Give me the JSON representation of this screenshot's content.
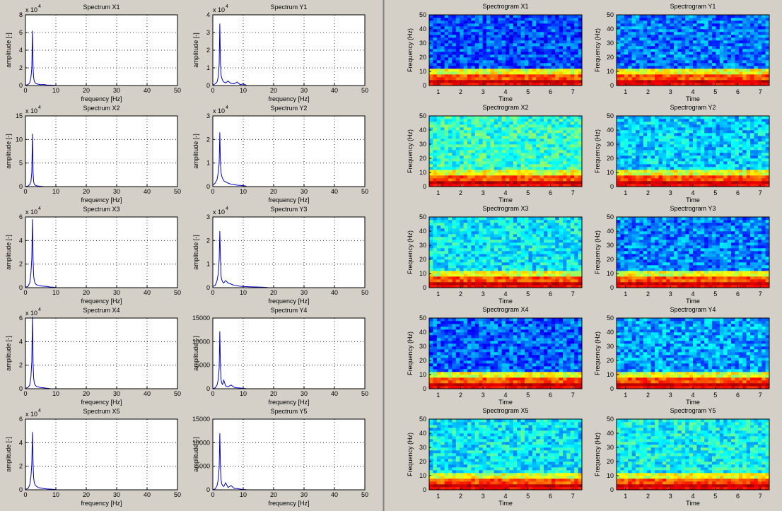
{
  "window": {
    "background": "#d4d0c8",
    "divider_color": "#808080"
  },
  "colors": {
    "spectrum_line": "#0000cc",
    "grid": "#000000",
    "axes_bg": "#ffffff"
  },
  "chart_data": [
    {
      "id": "spec-x1",
      "type": "line",
      "title": "Spectrum X1",
      "xlabel": "frequency [Hz]",
      "ylabel": "amplitude [-]",
      "exponent": "x 10",
      "exponent_power": "4",
      "xlim": [
        0,
        50
      ],
      "ylim": [
        0,
        8
      ],
      "xticks": [
        "0",
        "10",
        "20",
        "30",
        "40",
        "50"
      ],
      "yticks": [
        "0",
        "2",
        "4",
        "6",
        "8"
      ],
      "grid": true,
      "series": [
        {
          "x": [
            0,
            0.8,
            1.4,
            1.8,
            2.1,
            2.3,
            2.5,
            2.7,
            2.9,
            3.2,
            3.6,
            4.2,
            5,
            6,
            7,
            8,
            9,
            10
          ],
          "y": [
            0.05,
            0.1,
            0.3,
            0.9,
            2.0,
            6.2,
            2.0,
            0.9,
            0.5,
            0.3,
            0.2,
            0.15,
            0.1,
            0.12,
            0.06,
            0.05,
            0.04,
            0.02
          ]
        }
      ]
    },
    {
      "id": "spec-y1",
      "type": "line",
      "title": "Spectrum Y1",
      "xlabel": "frequency [Hz]",
      "ylabel": "amplitude [-]",
      "exponent": "x 10",
      "exponent_power": "4",
      "xlim": [
        0,
        50
      ],
      "ylim": [
        0,
        4
      ],
      "xticks": [
        "0",
        "10",
        "20",
        "30",
        "40",
        "50"
      ],
      "yticks": [
        "0",
        "1",
        "2",
        "3",
        "4"
      ],
      "grid": true,
      "series": [
        {
          "x": [
            0,
            0.8,
            1.4,
            1.8,
            2.1,
            2.3,
            2.5,
            2.7,
            2.9,
            3.2,
            3.6,
            4.2,
            5,
            6,
            7,
            8,
            9,
            10,
            11
          ],
          "y": [
            0.02,
            0.1,
            0.2,
            0.5,
            1.2,
            3.5,
            1.3,
            0.6,
            0.45,
            0.3,
            0.2,
            0.15,
            0.25,
            0.12,
            0.1,
            0.2,
            0.05,
            0.1,
            0.02
          ]
        }
      ]
    },
    {
      "id": "spec-x2",
      "type": "line",
      "title": "Spectrum X2",
      "xlabel": "frequency [Hz]",
      "ylabel": "amplitude [-]",
      "exponent": "x 10",
      "exponent_power": "4",
      "xlim": [
        0,
        50
      ],
      "ylim": [
        0,
        15
      ],
      "xticks": [
        "0",
        "10",
        "20",
        "30",
        "40",
        "50"
      ],
      "yticks": [
        "0",
        "5",
        "10",
        "15"
      ],
      "grid": true,
      "series": [
        {
          "x": [
            0,
            0.8,
            1.4,
            1.8,
            2.1,
            2.3,
            2.5,
            2.7,
            2.9,
            3.2,
            3.6,
            4.2,
            5,
            6
          ],
          "y": [
            0.05,
            0.1,
            0.4,
            1.0,
            3.0,
            11.2,
            3.0,
            1.0,
            0.5,
            0.3,
            0.2,
            0.1,
            0.08,
            0.02
          ]
        }
      ]
    },
    {
      "id": "spec-y2",
      "type": "line",
      "title": "Spectrum Y2",
      "xlabel": "frequency [Hz]",
      "ylabel": "amplitude [-]",
      "exponent": "x 10",
      "exponent_power": "4",
      "xlim": [
        0,
        50
      ],
      "ylim": [
        0,
        3
      ],
      "xticks": [
        "0",
        "10",
        "20",
        "30",
        "40",
        "50"
      ],
      "yticks": [
        "0",
        "1",
        "2",
        "3"
      ],
      "grid": true,
      "series": [
        {
          "x": [
            0,
            0.8,
            1.4,
            1.8,
            2.1,
            2.3,
            2.5,
            2.7,
            2.9,
            3.2,
            3.6,
            4.2,
            5,
            6,
            7,
            8,
            9,
            10,
            11
          ],
          "y": [
            0.05,
            0.15,
            0.3,
            0.6,
            1.0,
            2.3,
            1.0,
            0.6,
            0.45,
            0.35,
            0.25,
            0.2,
            0.15,
            0.1,
            0.08,
            0.06,
            0.05,
            0.04,
            0.02
          ]
        }
      ]
    },
    {
      "id": "spec-x3",
      "type": "line",
      "title": "Spectrum X3",
      "xlabel": "frequency [Hz]",
      "ylabel": "amplitude [-]",
      "exponent": "x 10",
      "exponent_power": "4",
      "xlim": [
        0,
        50
      ],
      "ylim": [
        0,
        6
      ],
      "xticks": [
        "0",
        "10",
        "20",
        "30",
        "40",
        "50"
      ],
      "yticks": [
        "0",
        "2",
        "4",
        "6"
      ],
      "grid": true,
      "series": [
        {
          "x": [
            0,
            0.8,
            1.4,
            1.8,
            2.1,
            2.3,
            2.5,
            2.7,
            2.9,
            3.2,
            3.6,
            4.2,
            5,
            6,
            7,
            8,
            9,
            10
          ],
          "y": [
            0.05,
            0.1,
            0.4,
            1.2,
            2.5,
            5.8,
            2.4,
            1.0,
            0.6,
            0.35,
            0.25,
            0.2,
            0.15,
            0.12,
            0.1,
            0.06,
            0.04,
            0.02
          ]
        }
      ]
    },
    {
      "id": "spec-y3",
      "type": "line",
      "title": "Spectrum Y3",
      "xlabel": "frequency [Hz]",
      "ylabel": "amplitude [-]",
      "exponent": "x 10",
      "exponent_power": "4",
      "xlim": [
        0,
        50
      ],
      "ylim": [
        0,
        3
      ],
      "xticks": [
        "0",
        "10",
        "20",
        "30",
        "40",
        "50"
      ],
      "yticks": [
        "0",
        "1",
        "2",
        "3"
      ],
      "grid": true,
      "series": [
        {
          "x": [
            0,
            0.8,
            1.4,
            1.8,
            2.1,
            2.3,
            2.5,
            2.7,
            2.9,
            3.2,
            3.6,
            4.2,
            5,
            6,
            7,
            8,
            9,
            10,
            12,
            14,
            16,
            18
          ],
          "y": [
            0.05,
            0.1,
            0.3,
            0.6,
            1.2,
            2.4,
            1.2,
            0.5,
            0.35,
            0.25,
            0.2,
            0.3,
            0.2,
            0.15,
            0.1,
            0.08,
            0.06,
            0.05,
            0.04,
            0.03,
            0.02,
            0.01
          ]
        }
      ]
    },
    {
      "id": "spec-x4",
      "type": "line",
      "title": "Spectrum X4",
      "xlabel": "frequency [Hz]",
      "ylabel": "amplitude [-]",
      "exponent": "x 10",
      "exponent_power": "4",
      "xlim": [
        0,
        50
      ],
      "ylim": [
        0,
        6
      ],
      "xticks": [
        "0",
        "10",
        "20",
        "30",
        "40",
        "50"
      ],
      "yticks": [
        "0",
        "2",
        "4",
        "6"
      ],
      "grid": true,
      "series": [
        {
          "x": [
            0,
            0.8,
            1.4,
            1.8,
            2.1,
            2.3,
            2.5,
            2.7,
            2.9,
            3.2,
            3.6,
            4.2,
            5,
            6,
            7,
            8
          ],
          "y": [
            0.05,
            0.1,
            0.3,
            1.0,
            2.3,
            6.1,
            2.2,
            0.9,
            0.5,
            0.3,
            0.2,
            0.15,
            0.1,
            0.08,
            0.04,
            0.02
          ]
        }
      ]
    },
    {
      "id": "spec-y4",
      "type": "line",
      "title": "Spectrum Y4",
      "xlabel": "frequency [Hz]",
      "ylabel": "amplitude [-]",
      "exponent": "",
      "exponent_power": "",
      "xlim": [
        0,
        50
      ],
      "ylim": [
        0,
        15000
      ],
      "xticks": [
        "0",
        "10",
        "20",
        "30",
        "40",
        "50"
      ],
      "yticks": [
        "0",
        "5000",
        "10000",
        "15000"
      ],
      "grid": true,
      "series": [
        {
          "x": [
            0,
            0.8,
            1.4,
            1.8,
            2.1,
            2.3,
            2.5,
            2.7,
            2.9,
            3.2,
            3.6,
            4.2,
            5,
            6,
            7,
            8,
            9,
            10,
            11
          ],
          "y": [
            50,
            200,
            800,
            2000,
            4500,
            12200,
            4500,
            2000,
            1200,
            900,
            1800,
            600,
            400,
            800,
            300,
            200,
            150,
            80,
            30
          ]
        }
      ]
    },
    {
      "id": "spec-x5",
      "type": "line",
      "title": "Spectrum X5",
      "xlabel": "frequency [Hz]",
      "ylabel": "amplitude [-]",
      "exponent": "x 10",
      "exponent_power": "4",
      "xlim": [
        0,
        50
      ],
      "ylim": [
        0,
        6
      ],
      "xticks": [
        "0",
        "10",
        "20",
        "30",
        "40",
        "50"
      ],
      "yticks": [
        "0",
        "2",
        "4",
        "6"
      ],
      "grid": true,
      "series": [
        {
          "x": [
            0,
            0.8,
            1.4,
            1.8,
            2.1,
            2.3,
            2.5,
            2.7,
            2.9,
            3.2,
            3.6,
            4.2,
            5,
            6,
            7,
            8,
            9,
            10
          ],
          "y": [
            0.05,
            0.1,
            0.4,
            1.1,
            2.2,
            4.9,
            2.2,
            1.0,
            0.6,
            0.4,
            0.3,
            0.2,
            0.15,
            0.1,
            0.08,
            0.06,
            0.04,
            0.02
          ]
        }
      ]
    },
    {
      "id": "spec-y5",
      "type": "line",
      "title": "Spectrum Y5",
      "xlabel": "frequency [Hz]",
      "ylabel": "amplitude [-]",
      "exponent": "",
      "exponent_power": "",
      "xlim": [
        0,
        50
      ],
      "ylim": [
        0,
        15000
      ],
      "xticks": [
        "0",
        "10",
        "20",
        "30",
        "40",
        "50"
      ],
      "yticks": [
        "0",
        "5000",
        "10000",
        "15000"
      ],
      "grid": true,
      "series": [
        {
          "x": [
            0,
            0.8,
            1.4,
            1.8,
            2.1,
            2.3,
            2.5,
            2.7,
            2.9,
            3.2,
            3.6,
            4.2,
            5,
            6,
            7,
            8,
            9,
            10,
            11
          ],
          "y": [
            50,
            200,
            900,
            2200,
            4800,
            12000,
            4800,
            2200,
            1300,
            900,
            700,
            1500,
            500,
            900,
            300,
            250,
            150,
            80,
            30
          ]
        }
      ]
    },
    {
      "id": "sgram-x1",
      "type": "heatmap",
      "title": "Spectrogram X1",
      "xlabel": "Time",
      "ylabel": "Frequency (Hz)",
      "xlim": [
        0.6,
        7.4
      ],
      "ylim": [
        0,
        50
      ],
      "xticks": [
        "1",
        "2",
        "3",
        "4",
        "5",
        "6",
        "7"
      ],
      "yticks": [
        "0",
        "10",
        "20",
        "30",
        "40",
        "50"
      ],
      "colormap": "jet",
      "upper_level": 0.2,
      "band_level": 0.97
    },
    {
      "id": "sgram-y1",
      "type": "heatmap",
      "title": "Spectrogram Y1",
      "xlabel": "Time",
      "ylabel": "Frequency (Hz)",
      "xlim": [
        0.6,
        7.4
      ],
      "ylim": [
        0,
        50
      ],
      "xticks": [
        "1",
        "2",
        "3",
        "4",
        "5",
        "6",
        "7"
      ],
      "yticks": [
        "0",
        "10",
        "20",
        "30",
        "40",
        "50"
      ],
      "colormap": "jet",
      "upper_level": 0.24,
      "band_level": 0.97
    },
    {
      "id": "sgram-x2",
      "type": "heatmap",
      "title": "Spectrogram X2",
      "xlabel": "Time",
      "ylabel": "Frequency (Hz)",
      "xlim": [
        0.6,
        7.4
      ],
      "ylim": [
        0,
        50
      ],
      "xticks": [
        "1",
        "2",
        "3",
        "4",
        "5",
        "6",
        "7"
      ],
      "yticks": [
        "0",
        "10",
        "20",
        "30",
        "40",
        "50"
      ],
      "colormap": "jet",
      "upper_level": 0.42,
      "band_level": 0.98
    },
    {
      "id": "sgram-y2",
      "type": "heatmap",
      "title": "Spectrogram Y2",
      "xlabel": "Time",
      "ylabel": "Frequency (Hz)",
      "xlim": [
        0.6,
        7.4
      ],
      "ylim": [
        0,
        50
      ],
      "xticks": [
        "1",
        "2",
        "3",
        "4",
        "5",
        "6",
        "7"
      ],
      "yticks": [
        "0",
        "10",
        "20",
        "30",
        "40",
        "50"
      ],
      "colormap": "jet",
      "upper_level": 0.33,
      "band_level": 0.97
    },
    {
      "id": "sgram-x3",
      "type": "heatmap",
      "title": "Spectrogram X3",
      "xlabel": "Time",
      "ylabel": "Frequency (Hz)",
      "xlim": [
        0.6,
        7.4
      ],
      "ylim": [
        0,
        50
      ],
      "xticks": [
        "1",
        "2",
        "3",
        "4",
        "5",
        "6",
        "7"
      ],
      "yticks": [
        "0",
        "10",
        "20",
        "30",
        "40",
        "50"
      ],
      "colormap": "jet",
      "upper_level": 0.36,
      "band_level": 0.97
    },
    {
      "id": "sgram-y3",
      "type": "heatmap",
      "title": "Spectrogram Y3",
      "xlabel": "Time",
      "ylabel": "Frequency (Hz)",
      "xlim": [
        0.6,
        7.4
      ],
      "ylim": [
        0,
        50
      ],
      "xticks": [
        "1",
        "2",
        "3",
        "4",
        "5",
        "6",
        "7"
      ],
      "yticks": [
        "0",
        "10",
        "20",
        "30",
        "40",
        "50"
      ],
      "colormap": "jet",
      "upper_level": 0.25,
      "band_level": 0.97
    },
    {
      "id": "sgram-x4",
      "type": "heatmap",
      "title": "Spectrogram X4",
      "xlabel": "Time",
      "ylabel": "Frequency (Hz)",
      "xlim": [
        0.6,
        7.4
      ],
      "ylim": [
        0,
        50
      ],
      "xticks": [
        "1",
        "2",
        "3",
        "4",
        "5",
        "6",
        "7"
      ],
      "yticks": [
        "0",
        "10",
        "20",
        "30",
        "40",
        "50"
      ],
      "colormap": "jet",
      "upper_level": 0.22,
      "band_level": 0.97
    },
    {
      "id": "sgram-y4",
      "type": "heatmap",
      "title": "Spectrogram Y4",
      "xlabel": "Time",
      "ylabel": "Frequency (Hz)",
      "xlim": [
        0.6,
        7.4
      ],
      "ylim": [
        0,
        50
      ],
      "xticks": [
        "1",
        "2",
        "3",
        "4",
        "5",
        "6",
        "7"
      ],
      "yticks": [
        "0",
        "10",
        "20",
        "30",
        "40",
        "50"
      ],
      "colormap": "jet",
      "upper_level": 0.28,
      "band_level": 0.97
    },
    {
      "id": "sgram-x5",
      "type": "heatmap",
      "title": "Spectrogram X5",
      "xlabel": "Time",
      "ylabel": "Frequency (Hz)",
      "xlim": [
        0.6,
        7.4
      ],
      "ylim": [
        0,
        50
      ],
      "xticks": [
        "1",
        "2",
        "3",
        "4",
        "5",
        "6",
        "7"
      ],
      "yticks": [
        "0",
        "10",
        "20",
        "30",
        "40",
        "50"
      ],
      "colormap": "jet",
      "upper_level": 0.36,
      "band_level": 0.97
    },
    {
      "id": "sgram-y5",
      "type": "heatmap",
      "title": "Spectrogram Y5",
      "xlabel": "Time",
      "ylabel": "Frequency (Hz)",
      "xlim": [
        0.6,
        7.4
      ],
      "ylim": [
        0,
        50
      ],
      "xticks": [
        "1",
        "2",
        "3",
        "4",
        "5",
        "6",
        "7"
      ],
      "yticks": [
        "0",
        "10",
        "20",
        "30",
        "40",
        "50"
      ],
      "colormap": "jet",
      "upper_level": 0.38,
      "band_level": 0.97
    }
  ]
}
